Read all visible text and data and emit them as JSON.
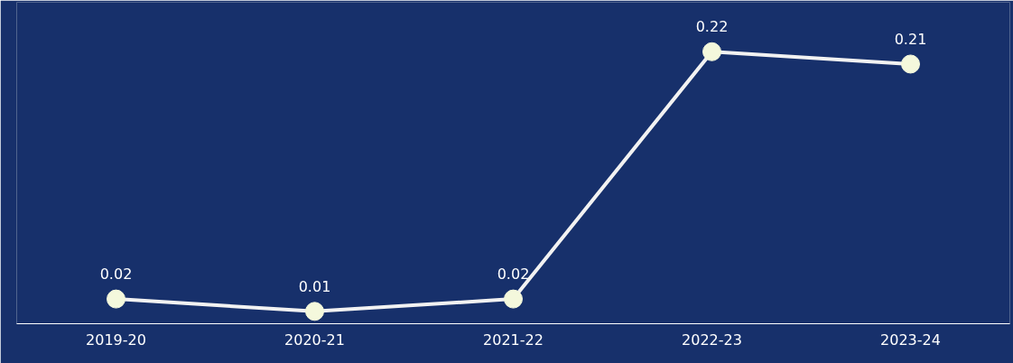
{
  "chart_data": {
    "type": "line",
    "categories": [
      "2019-20",
      "2020-21",
      "2021-22",
      "2022-23",
      "2023-24"
    ],
    "series": [
      {
        "color": "#f2f2f2",
        "values": [
          0.02,
          0.01,
          0.02,
          0.22,
          0.21
        ]
      }
    ],
    "marker": "circle",
    "line_style": "solid",
    "data_labels": true,
    "grid": false,
    "tick_labels": "x",
    "ylim": [
      0,
      0.26
    ]
  }
}
